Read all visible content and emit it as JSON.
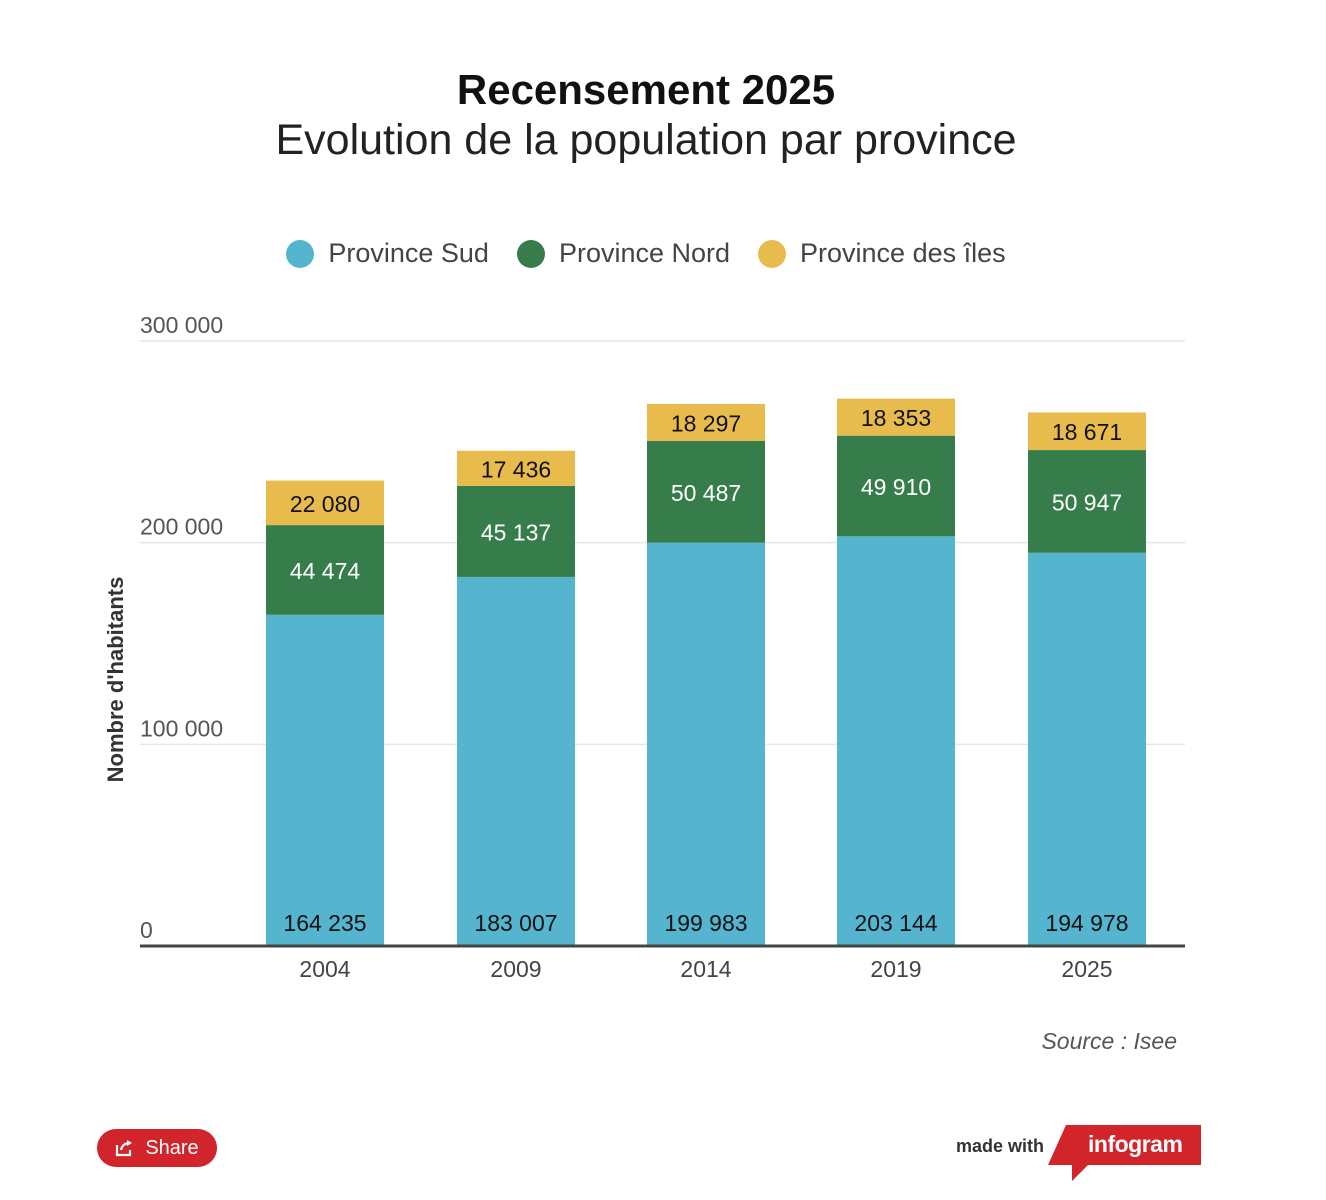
{
  "header": {
    "title": "Recensement 2025",
    "subtitle": "Evolution de la population par province"
  },
  "legend": [
    {
      "label": "Province Sud",
      "color": "#55b5cf"
    },
    {
      "label": "Province Nord",
      "color": "#377d4b"
    },
    {
      "label": "Province des îles",
      "color": "#e8bb4d"
    }
  ],
  "chart_data": {
    "type": "bar",
    "stacked": true,
    "title": "Recensement 2025",
    "subtitle": "Evolution de la population par province",
    "xlabel": "",
    "ylabel": "Nombre d'habitants",
    "ylim": [
      0,
      300000
    ],
    "yticks": [
      0,
      100000,
      200000,
      300000
    ],
    "ytick_labels": [
      "0",
      "100 000",
      "200 000",
      "300 000"
    ],
    "grid": true,
    "legend_position": "top-center",
    "categories": [
      "2004",
      "2009",
      "2014",
      "2019",
      "2025"
    ],
    "series": [
      {
        "name": "Province Sud",
        "color": "#55b5cf",
        "values": [
          164235,
          183007,
          199983,
          203144,
          194978
        ],
        "labels": [
          "164 235",
          "183 007",
          "199 983",
          "203 144",
          "194 978"
        ]
      },
      {
        "name": "Province Nord",
        "color": "#377d4b",
        "values": [
          44474,
          45137,
          50487,
          49910,
          50947
        ],
        "labels": [
          "44 474",
          "45 137",
          "50 487",
          "49 910",
          "50 947"
        ]
      },
      {
        "name": "Province des îles",
        "color": "#e8bb4d",
        "values": [
          22080,
          17436,
          18297,
          18353,
          18671
        ],
        "labels": [
          "22 080",
          "17 436",
          "18 297",
          "18 353",
          "18 671"
        ]
      }
    ],
    "source": "Source : Isee"
  },
  "footer": {
    "share_label": "Share",
    "made_with": "made with",
    "brand": "infogram",
    "brand_color": "#d1242b"
  }
}
